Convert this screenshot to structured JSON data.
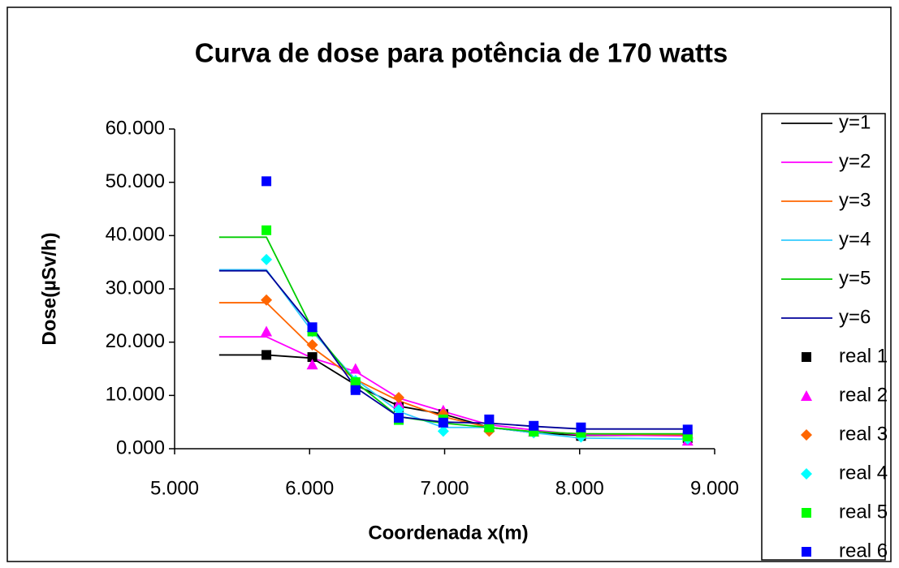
{
  "chart_data": {
    "type": "scatter-line",
    "title": "Curva de dose para potência de 170 watts",
    "xlabel": "Coordenada x(m)",
    "ylabel": "Dose(µSv/h)",
    "xlim": [
      5,
      9
    ],
    "xticks": [
      {
        "value": 5,
        "label": "5.000"
      },
      {
        "value": 6,
        "label": "6.000"
      },
      {
        "value": 7,
        "label": "7.000"
      },
      {
        "value": 8,
        "label": "8.000"
      },
      {
        "value": 9,
        "label": "9.000"
      }
    ],
    "ylim": [
      0,
      60
    ],
    "yticks": [
      {
        "value": 0,
        "label": "0.000"
      },
      {
        "value": 10,
        "label": "10.000"
      },
      {
        "value": 20,
        "label": "20.000"
      },
      {
        "value": 30,
        "label": "30.000"
      },
      {
        "value": 40,
        "label": "40.000"
      },
      {
        "value": 50,
        "label": "50.000"
      },
      {
        "value": 60,
        "label": "60.000"
      }
    ],
    "grid": false,
    "legend": "right",
    "series": [
      {
        "name": "y=1",
        "color": "#000000",
        "mode": "line",
        "x": [
          5.33,
          5.68,
          6.02,
          6.34,
          6.66,
          6.99,
          7.33,
          7.66,
          8.01,
          8.55
        ],
        "values": [
          17.6,
          17.6,
          17.0,
          12.0,
          8.0,
          6.5,
          4.0,
          3.0,
          2.5,
          2.5
        ]
      },
      {
        "name": "y=2",
        "color": "#ff00ff",
        "mode": "line",
        "x": [
          5.33,
          5.68,
          6.02,
          6.34,
          6.66,
          6.99,
          7.33,
          7.66,
          8.01,
          8.8
        ],
        "values": [
          21.0,
          21.0,
          17.0,
          14.5,
          9.5,
          7.0,
          4.5,
          3.5,
          2.6,
          2.4
        ]
      },
      {
        "name": "y=3",
        "color": "#ff6600",
        "mode": "line",
        "x": [
          5.33,
          5.68,
          6.02,
          6.34,
          6.66,
          6.99,
          7.33,
          7.66,
          8.01,
          8.8
        ],
        "values": [
          27.4,
          27.4,
          19.0,
          13.0,
          9.0,
          6.0,
          4.0,
          3.2,
          2.8,
          2.6
        ]
      },
      {
        "name": "y=4",
        "color": "#33ccff",
        "mode": "line",
        "x": [
          5.33,
          5.68,
          6.02,
          6.34,
          6.66,
          6.99,
          7.33,
          7.66,
          8.01,
          8.8
        ],
        "values": [
          33.6,
          33.6,
          22.0,
          13.0,
          7.0,
          4.0,
          4.0,
          3.0,
          2.0,
          1.8
        ]
      },
      {
        "name": "y=5",
        "color": "#00cc00",
        "mode": "line",
        "x": [
          5.33,
          5.68,
          6.02,
          6.34,
          6.66,
          6.99,
          7.33,
          7.66,
          8.01,
          8.8
        ],
        "values": [
          39.7,
          39.7,
          22.5,
          12.5,
          6.0,
          4.8,
          4.0,
          3.2,
          2.8,
          2.8
        ]
      },
      {
        "name": "y=6",
        "color": "#000099",
        "mode": "line",
        "x": [
          5.33,
          5.68,
          6.02,
          6.34,
          6.66,
          6.99,
          7.33,
          7.66,
          8.01,
          8.8
        ],
        "values": [
          33.4,
          33.4,
          22.8,
          11.5,
          6.0,
          5.0,
          4.8,
          4.2,
          3.7,
          3.7
        ]
      },
      {
        "name": "real 1",
        "color": "#000000",
        "mode": "marker",
        "marker": "square",
        "x": [
          5.68,
          6.02,
          6.34,
          6.66,
          6.99,
          7.33,
          7.66,
          8.01,
          8.8
        ],
        "values": [
          17.6,
          17.2,
          11.5,
          7.8,
          6.5,
          4.0,
          3.5,
          2.4,
          2.0
        ]
      },
      {
        "name": "real 2",
        "color": "#ff00ff",
        "mode": "marker",
        "marker": "triangle",
        "x": [
          5.68,
          6.02,
          6.34,
          6.66,
          6.99,
          7.33,
          7.66,
          8.01,
          8.8
        ],
        "values": [
          22.0,
          15.8,
          15.0,
          8.5,
          7.2,
          4.2,
          3.2,
          2.8,
          1.5
        ]
      },
      {
        "name": "real 3",
        "color": "#ff6600",
        "mode": "marker",
        "marker": "diamond",
        "x": [
          5.68,
          6.02,
          6.34,
          6.66,
          6.99,
          7.33,
          7.66,
          8.01,
          8.8
        ],
        "values": [
          27.9,
          19.5,
          12.5,
          9.6,
          6.5,
          3.3,
          3.0,
          2.8,
          2.0
        ]
      },
      {
        "name": "real 4",
        "color": "#00ffff",
        "mode": "marker",
        "marker": "diamond",
        "x": [
          5.68,
          6.02,
          6.34,
          6.66,
          6.99,
          7.33,
          7.66,
          8.01,
          8.8
        ],
        "values": [
          35.5,
          22.0,
          12.8,
          7.3,
          3.3,
          4.2,
          3.0,
          2.2,
          1.8
        ]
      },
      {
        "name": "real 5",
        "color": "#00ff00",
        "mode": "marker",
        "marker": "square",
        "x": [
          5.68,
          6.02,
          6.34,
          6.66,
          6.99,
          7.33,
          7.66,
          8.01,
          8.8
        ],
        "values": [
          41.0,
          22.0,
          12.5,
          5.4,
          5.5,
          4.0,
          3.2,
          3.0,
          2.3
        ]
      },
      {
        "name": "real 6",
        "color": "#0000ff",
        "mode": "marker",
        "marker": "square",
        "x": [
          5.68,
          6.02,
          6.34,
          6.66,
          6.99,
          7.33,
          7.66,
          8.01,
          8.8
        ],
        "values": [
          50.2,
          22.8,
          11.0,
          5.8,
          4.9,
          5.5,
          4.3,
          4.0,
          3.6
        ]
      }
    ]
  }
}
